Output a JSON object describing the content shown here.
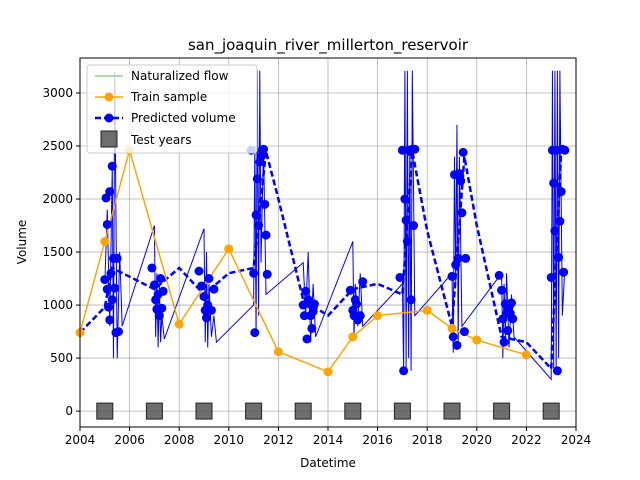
{
  "chart_data": {
    "type": "line",
    "title": "san_joaquin_river_millerton_reservoir",
    "xlabel": "Datetime",
    "ylabel": "Volume",
    "x_unit": "year",
    "xlim": [
      2004,
      2024
    ],
    "ylim": [
      -150,
      3330
    ],
    "x_ticks": [
      2004,
      2006,
      2008,
      2010,
      2012,
      2014,
      2016,
      2018,
      2020,
      2022,
      2024
    ],
    "x_tick_labels": [
      "2004",
      "2006",
      "2008",
      "2010",
      "2012",
      "2014",
      "2016",
      "2018",
      "2020",
      "2022",
      "2024"
    ],
    "y_ticks": [
      0,
      500,
      1000,
      1500,
      2000,
      2500,
      3000
    ],
    "y_tick_labels": [
      "0",
      "500",
      "1000",
      "1500",
      "2000",
      "2500",
      "3000"
    ],
    "grid": true,
    "legend_position": "top-left",
    "legend": [
      {
        "label": "Naturalized flow",
        "style": "line",
        "color": "#90d090"
      },
      {
        "label": "Train sample",
        "style": "line-marker",
        "color": "#ffa500"
      },
      {
        "label": "Predicted volume",
        "style": "dashed-marker",
        "color": "#0000ff"
      },
      {
        "label": "Test years",
        "style": "square",
        "color": "#555555"
      }
    ],
    "series": [
      {
        "name": "Train sample",
        "color": "#ffa500",
        "x": [
          2004.0,
          2005.0,
          2006.0,
          2008.0,
          2010.0,
          2012.0,
          2014.0,
          2015.0,
          2016.0,
          2018.0,
          2019.0,
          2020.0,
          2022.0
        ],
        "y": [
          740,
          1600,
          2460,
          820,
          1530,
          560,
          370,
          700,
          900,
          950,
          780,
          670,
          530
        ]
      },
      {
        "name": "Predicted volume",
        "color": "#0000ff",
        "thin": [
          [
            2005.0,
            1200
          ],
          [
            2005.1,
            1900
          ],
          [
            2005.2,
            800
          ],
          [
            2005.3,
            2300
          ],
          [
            2005.35,
            500
          ],
          [
            2005.4,
            3200
          ],
          [
            2005.5,
            500
          ],
          [
            2005.6,
            1500
          ],
          [
            2005.7,
            800
          ],
          [
            2007.0,
            1750
          ],
          [
            2007.05,
            700
          ],
          [
            2007.1,
            1300
          ],
          [
            2007.15,
            600
          ],
          [
            2007.2,
            1200
          ],
          [
            2007.25,
            650
          ],
          [
            2007.3,
            900
          ],
          [
            2007.4,
            680
          ],
          [
            2009.0,
            1720
          ],
          [
            2009.05,
            650
          ],
          [
            2009.1,
            1500
          ],
          [
            2009.15,
            600
          ],
          [
            2009.2,
            1200
          ],
          [
            2009.3,
            700
          ],
          [
            2009.4,
            900
          ],
          [
            2009.5,
            650
          ],
          [
            2011.0,
            1000
          ],
          [
            2011.05,
            2500
          ],
          [
            2011.1,
            700
          ],
          [
            2011.15,
            3210
          ],
          [
            2011.2,
            900
          ],
          [
            2011.25,
            3210
          ],
          [
            2011.3,
            1400
          ],
          [
            2011.4,
            2500
          ],
          [
            2011.5,
            1100
          ],
          [
            2013.0,
            1400
          ],
          [
            2013.1,
            900
          ],
          [
            2013.2,
            1500
          ],
          [
            2013.3,
            650
          ],
          [
            2013.4,
            1200
          ],
          [
            2013.5,
            700
          ],
          [
            2015.0,
            1600
          ],
          [
            2015.05,
            700
          ],
          [
            2015.1,
            1200
          ],
          [
            2015.2,
            800
          ],
          [
            2015.3,
            1300
          ],
          [
            2015.4,
            800
          ],
          [
            2017.0,
            1200
          ],
          [
            2017.05,
            380
          ],
          [
            2017.1,
            3210
          ],
          [
            2017.15,
            380
          ],
          [
            2017.2,
            3210
          ],
          [
            2017.25,
            500
          ],
          [
            2017.3,
            2500
          ],
          [
            2017.35,
            380
          ],
          [
            2017.4,
            3210
          ],
          [
            2017.5,
            900
          ],
          [
            2019.0,
            1300
          ],
          [
            2019.05,
            550
          ],
          [
            2019.1,
            2400
          ],
          [
            2019.15,
            1200
          ],
          [
            2019.2,
            2700
          ],
          [
            2019.25,
            600
          ],
          [
            2019.3,
            2400
          ],
          [
            2019.4,
            800
          ],
          [
            2021.0,
            1300
          ],
          [
            2021.05,
            500
          ],
          [
            2021.1,
            1200
          ],
          [
            2021.15,
            700
          ],
          [
            2021.2,
            1300
          ],
          [
            2021.3,
            600
          ],
          [
            2021.4,
            1100
          ],
          [
            2021.5,
            700
          ],
          [
            2023.0,
            300
          ],
          [
            2023.05,
            3210
          ],
          [
            2023.1,
            400
          ],
          [
            2023.15,
            3210
          ],
          [
            2023.2,
            380
          ],
          [
            2023.25,
            3210
          ],
          [
            2023.3,
            500
          ],
          [
            2023.35,
            3210
          ],
          [
            2023.45,
            900
          ],
          [
            2023.55,
            1350
          ]
        ],
        "dashed": [
          [
            2004.0,
            740
          ],
          [
            2005.0,
            980
          ],
          [
            2005.3,
            1350
          ],
          [
            2007.0,
            1150
          ],
          [
            2008.0,
            1350
          ],
          [
            2009.0,
            1100
          ],
          [
            2010.0,
            1300
          ],
          [
            2011.0,
            1350
          ],
          [
            2011.5,
            2450
          ],
          [
            2012.0,
            2000
          ],
          [
            2013.0,
            1050
          ],
          [
            2014.0,
            900
          ],
          [
            2015.0,
            1150
          ],
          [
            2016.0,
            1200
          ],
          [
            2017.0,
            1100
          ],
          [
            2017.4,
            2450
          ],
          [
            2018.0,
            1700
          ],
          [
            2019.0,
            800
          ],
          [
            2019.5,
            2400
          ],
          [
            2020.0,
            1750
          ],
          [
            2021.0,
            700
          ],
          [
            2022.0,
            650
          ],
          [
            2023.0,
            400
          ],
          [
            2023.4,
            2450
          ]
        ],
        "markers": [
          [
            2005.0,
            1240
          ],
          [
            2005.05,
            2010
          ],
          [
            2005.1,
            1760
          ],
          [
            2005.15,
            980
          ],
          [
            2005.2,
            860
          ],
          [
            2005.25,
            1300
          ],
          [
            2005.3,
            2310
          ],
          [
            2005.35,
            1440
          ],
          [
            2005.4,
            1160
          ],
          [
            2005.45,
            740
          ],
          [
            2005.5,
            1440
          ],
          [
            2005.55,
            750
          ],
          [
            2005.2,
            2070
          ],
          [
            2005.1,
            1150
          ],
          [
            2005.3,
            1050
          ],
          [
            2006.9,
            1350
          ],
          [
            2007.0,
            1190
          ],
          [
            2007.05,
            1050
          ],
          [
            2007.1,
            960
          ],
          [
            2007.15,
            1100
          ],
          [
            2007.2,
            900
          ],
          [
            2007.25,
            1250
          ],
          [
            2007.3,
            970
          ],
          [
            2007.35,
            1130
          ],
          [
            2008.8,
            1320
          ],
          [
            2008.9,
            1180
          ],
          [
            2009.0,
            1080
          ],
          [
            2009.05,
            950
          ],
          [
            2009.1,
            880
          ],
          [
            2009.15,
            1000
          ],
          [
            2009.2,
            1250
          ],
          [
            2009.3,
            950
          ],
          [
            2009.4,
            1150
          ],
          [
            2010.9,
            2460
          ],
          [
            2011.0,
            1300
          ],
          [
            2011.05,
            740
          ],
          [
            2011.1,
            1850
          ],
          [
            2011.15,
            2190
          ],
          [
            2011.2,
            1750
          ],
          [
            2011.25,
            2350
          ],
          [
            2011.3,
            2400
          ],
          [
            2011.35,
            2460
          ],
          [
            2011.4,
            2470
          ],
          [
            2011.45,
            1950
          ],
          [
            2011.5,
            1660
          ],
          [
            2011.55,
            1290
          ],
          [
            2013.0,
            1000
          ],
          [
            2013.05,
            900
          ],
          [
            2013.1,
            1130
          ],
          [
            2013.15,
            680
          ],
          [
            2013.2,
            1050
          ],
          [
            2013.25,
            1010
          ],
          [
            2013.3,
            900
          ],
          [
            2013.35,
            780
          ],
          [
            2013.4,
            940
          ],
          [
            2013.45,
            1010
          ],
          [
            2014.9,
            1140
          ],
          [
            2015.0,
            950
          ],
          [
            2015.05,
            900
          ],
          [
            2015.1,
            1050
          ],
          [
            2015.15,
            1010
          ],
          [
            2015.2,
            860
          ],
          [
            2015.3,
            900
          ],
          [
            2015.4,
            1220
          ],
          [
            2016.9,
            1260
          ],
          [
            2017.0,
            2460
          ],
          [
            2017.05,
            380
          ],
          [
            2017.1,
            2000
          ],
          [
            2017.15,
            1800
          ],
          [
            2017.2,
            1600
          ],
          [
            2017.25,
            2460
          ],
          [
            2017.3,
            2450
          ],
          [
            2017.35,
            1050
          ],
          [
            2017.4,
            2470
          ],
          [
            2017.45,
            1750
          ],
          [
            2017.5,
            2470
          ],
          [
            2019.0,
            1270
          ],
          [
            2019.05,
            700
          ],
          [
            2019.1,
            2230
          ],
          [
            2019.15,
            1380
          ],
          [
            2019.2,
            620
          ],
          [
            2019.25,
            1440
          ],
          [
            2019.3,
            2240
          ],
          [
            2019.35,
            2170
          ],
          [
            2019.4,
            1870
          ],
          [
            2019.45,
            2440
          ],
          [
            2019.5,
            750
          ],
          [
            2019.55,
            1440
          ],
          [
            2020.9,
            1280
          ],
          [
            2021.0,
            1140
          ],
          [
            2021.05,
            870
          ],
          [
            2021.1,
            650
          ],
          [
            2021.15,
            1010
          ],
          [
            2021.2,
            920
          ],
          [
            2021.25,
            760
          ],
          [
            2021.3,
            980
          ],
          [
            2021.35,
            920
          ],
          [
            2021.4,
            1020
          ],
          [
            2021.45,
            870
          ],
          [
            2023.0,
            1260
          ],
          [
            2023.05,
            2460
          ],
          [
            2023.1,
            2150
          ],
          [
            2023.15,
            1700
          ],
          [
            2023.2,
            2460
          ],
          [
            2023.25,
            380
          ],
          [
            2023.3,
            1450
          ],
          [
            2023.35,
            1790
          ],
          [
            2023.4,
            2070
          ],
          [
            2023.45,
            2470
          ],
          [
            2023.5,
            1310
          ],
          [
            2023.55,
            2460
          ]
        ]
      },
      {
        "name": "Test years",
        "color": "#555555",
        "x": [
          2005,
          2007,
          2009,
          2011,
          2013,
          2015,
          2017,
          2019,
          2021,
          2023
        ],
        "y": [
          0,
          0,
          0,
          0,
          0,
          0,
          0,
          0,
          0,
          0
        ]
      }
    ]
  }
}
